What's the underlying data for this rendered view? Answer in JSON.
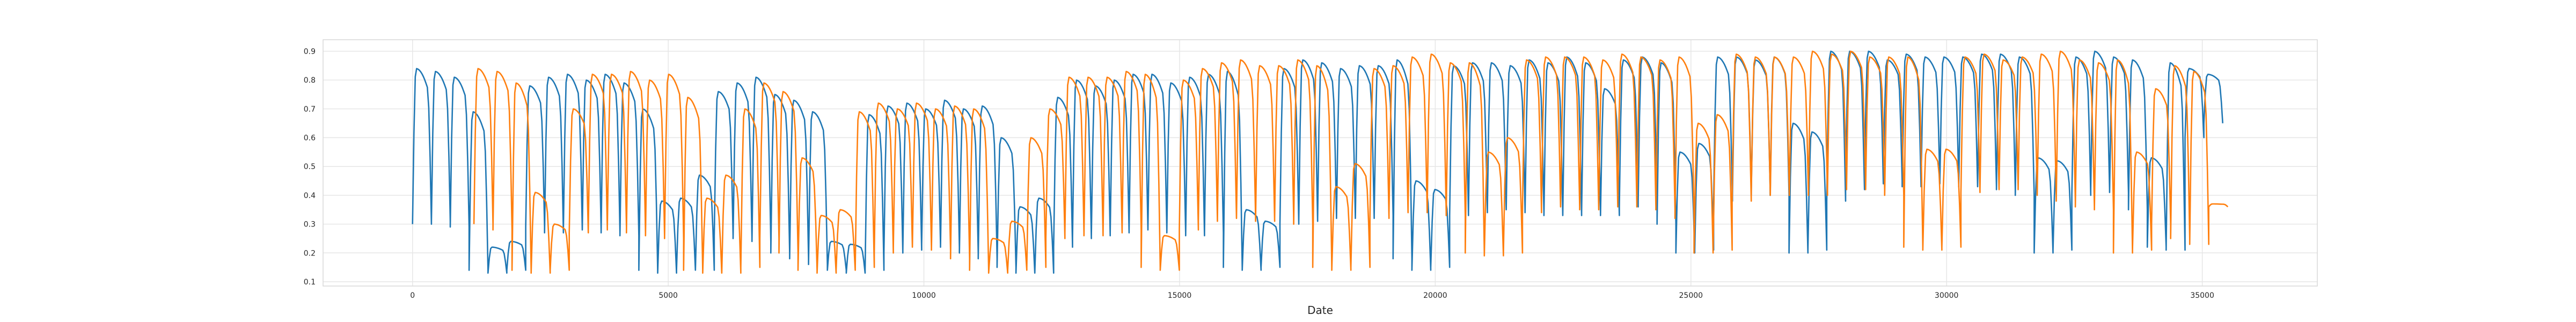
{
  "chart_data": {
    "type": "line",
    "title": "",
    "xlabel": "Date",
    "ylabel": "",
    "xlim": [
      -1750,
      37250
    ],
    "ylim": [
      0.085,
      0.94
    ],
    "x_ticks": [
      "0",
      "5000",
      "10000",
      "15000",
      "20000",
      "25000",
      "30000",
      "35000"
    ],
    "y_ticks": [
      "0.1",
      "0.2",
      "0.3",
      "0.4",
      "0.5",
      "0.6",
      "0.7",
      "0.8",
      "0.9"
    ],
    "grid": true,
    "legend": "none",
    "colors": [
      "#1f77b4",
      "#ff7f0e"
    ],
    "series": [
      {
        "x_start": 0,
        "x_end": 35400,
        "cycle_period": 480,
        "peak_values": [
          0.84,
          0.83,
          0.81,
          0.69,
          0.22,
          0.24,
          0.78,
          0.81,
          0.82,
          0.8,
          0.82,
          0.79,
          0.7,
          0.38,
          0.39,
          0.47,
          0.76,
          0.79,
          0.81,
          0.75,
          0.73,
          0.69,
          0.24,
          0.23,
          0.68,
          0.71,
          0.72,
          0.7,
          0.73,
          0.7,
          0.71,
          0.6,
          0.36,
          0.39,
          0.74,
          0.8,
          0.78,
          0.8,
          0.82,
          0.82,
          0.79,
          0.81,
          0.82,
          0.83,
          0.35,
          0.31,
          0.84,
          0.87,
          0.86,
          0.84,
          0.85,
          0.85,
          0.87,
          0.45,
          0.42,
          0.85,
          0.86,
          0.86,
          0.85,
          0.87,
          0.86,
          0.88,
          0.86,
          0.77,
          0.87,
          0.88,
          0.86,
          0.55,
          0.58,
          0.88,
          0.88,
          0.87,
          0.88,
          0.65,
          0.62,
          0.9,
          0.9,
          0.9,
          0.87,
          0.89,
          0.88,
          0.88,
          0.88,
          0.89,
          0.89,
          0.88,
          0.53,
          0.52,
          0.88,
          0.9,
          0.88,
          0.87,
          0.53,
          0.86,
          0.84,
          0.82
        ],
        "trough_values": [
          0.3,
          0.31,
          0.29,
          0.14,
          0.13,
          0.14,
          0.29,
          0.27,
          0.28,
          0.28,
          0.27,
          0.26,
          0.14,
          0.13,
          0.14,
          0.14,
          0.26,
          0.25,
          0.24,
          0.2,
          0.18,
          0.16,
          0.14,
          0.13,
          0.14,
          0.2,
          0.21,
          0.23,
          0.22,
          0.2,
          0.18,
          0.15,
          0.13,
          0.13,
          0.22,
          0.25,
          0.26,
          0.27,
          0.28,
          0.28,
          0.27,
          0.26,
          0.27,
          0.15,
          0.14,
          0.15,
          0.3,
          0.31,
          0.32,
          0.32,
          0.32,
          0.33,
          0.18,
          0.14,
          0.15,
          0.33,
          0.34,
          0.35,
          0.35,
          0.34,
          0.33,
          0.33,
          0.34,
          0.33,
          0.36,
          0.38,
          0.3,
          0.2,
          0.21,
          0.38,
          0.4,
          0.42,
          0.4,
          0.2,
          0.21,
          0.38,
          0.42,
          0.44,
          0.45,
          0.43,
          0.44,
          0.45,
          0.43,
          0.43,
          0.42,
          0.4,
          0.2,
          0.21,
          0.4,
          0.42,
          0.41,
          0.35,
          0.22,
          0.21,
          0.6,
          0.65
        ]
      },
      {
        "x_start": 1200,
        "x_end": 35500,
        "cycle_period": 480,
        "peak_values": [
          0.84,
          0.83,
          0.79,
          0.41,
          0.3,
          0.7,
          0.82,
          0.82,
          0.83,
          0.8,
          0.82,
          0.74,
          0.39,
          0.47,
          0.7,
          0.79,
          0.76,
          0.53,
          0.33,
          0.35,
          0.69,
          0.72,
          0.7,
          0.72,
          0.7,
          0.71,
          0.7,
          0.25,
          0.31,
          0.6,
          0.7,
          0.81,
          0.81,
          0.81,
          0.83,
          0.82,
          0.26,
          0.8,
          0.84,
          0.86,
          0.87,
          0.85,
          0.85,
          0.87,
          0.85,
          0.43,
          0.51,
          0.84,
          0.85,
          0.88,
          0.89,
          0.86,
          0.86,
          0.55,
          0.6,
          0.87,
          0.88,
          0.88,
          0.88,
          0.87,
          0.89,
          0.88,
          0.87,
          0.88,
          0.65,
          0.68,
          0.89,
          0.88,
          0.88,
          0.88,
          0.9,
          0.89,
          0.9,
          0.88,
          0.88,
          0.88,
          0.56,
          0.56,
          0.88,
          0.89,
          0.87,
          0.88,
          0.89,
          0.9,
          0.87,
          0.86,
          0.87,
          0.55,
          0.77,
          0.85,
          0.83,
          0.37
        ],
        "trough_values": [
          0.3,
          0.28,
          0.14,
          0.13,
          0.14,
          0.27,
          0.28,
          0.29,
          0.27,
          0.26,
          0.25,
          0.14,
          0.13,
          0.13,
          0.15,
          0.25,
          0.2,
          0.14,
          0.13,
          0.14,
          0.15,
          0.2,
          0.22,
          0.22,
          0.21,
          0.18,
          0.14,
          0.13,
          0.14,
          0.15,
          0.25,
          0.27,
          0.26,
          0.27,
          0.28,
          0.15,
          0.14,
          0.28,
          0.31,
          0.32,
          0.32,
          0.31,
          0.32,
          0.3,
          0.15,
          0.14,
          0.15,
          0.32,
          0.34,
          0.35,
          0.34,
          0.33,
          0.2,
          0.19,
          0.2,
          0.34,
          0.36,
          0.36,
          0.35,
          0.36,
          0.37,
          0.36,
          0.35,
          0.32,
          0.2,
          0.21,
          0.38,
          0.4,
          0.4,
          0.41,
          0.4,
          0.42,
          0.43,
          0.42,
          0.4,
          0.22,
          0.21,
          0.22,
          0.41,
          0.42,
          0.43,
          0.42,
          0.4,
          0.38,
          0.36,
          0.35,
          0.2,
          0.21,
          0.3,
          0.25,
          0.23,
          0.36
        ]
      }
    ]
  }
}
